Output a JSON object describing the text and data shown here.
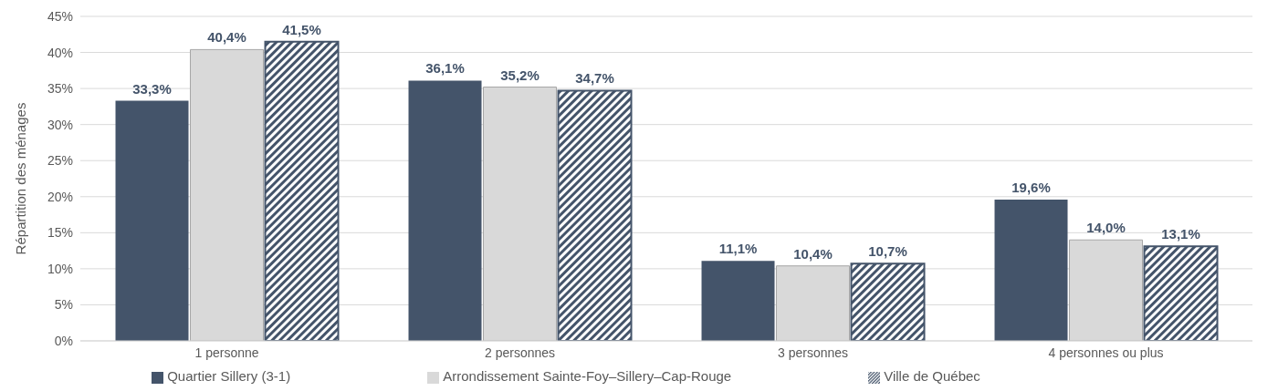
{
  "chart_data": {
    "type": "bar",
    "ylabel": "Répartition des ménages",
    "categories": [
      "1 personne",
      "2 personnes",
      "3 personnes",
      "4 personnes ou plus"
    ],
    "series": [
      {
        "name": "Quartier Sillery (3-1)",
        "color": "#44546a",
        "values": [
          33.3,
          36.1,
          11.1,
          19.6
        ],
        "value_labels": [
          "33,3%",
          "36,1%",
          "11,1%",
          "19,6%"
        ]
      },
      {
        "name": "Arrondissement Sainte-Foy–Sillery–Cap-Rouge",
        "color": "#d9d9d9",
        "values": [
          40.4,
          35.2,
          10.4,
          14.0
        ],
        "value_labels": [
          "40,4%",
          "35,2%",
          "10,4%",
          "14,0%"
        ]
      },
      {
        "name": "Ville de Québec",
        "color": "#44546a",
        "values": [
          41.5,
          34.7,
          10.7,
          13.1
        ],
        "value_labels": [
          "41,5%",
          "34,7%",
          "10,7%",
          "13,1%"
        ]
      }
    ],
    "ylim": [
      0,
      45
    ],
    "yticks": [
      {
        "value": 0,
        "label": "0%"
      },
      {
        "value": 5,
        "label": "5%"
      },
      {
        "value": 10,
        "label": "10%"
      },
      {
        "value": 15,
        "label": "15%"
      },
      {
        "value": 20,
        "label": "20%"
      },
      {
        "value": 25,
        "label": "25%"
      },
      {
        "value": 30,
        "label": "30%"
      },
      {
        "value": 35,
        "label": "35%"
      },
      {
        "value": 40,
        "label": "40%"
      },
      {
        "value": 45,
        "label": "45%"
      }
    ],
    "grid": "y",
    "legend": "bottom"
  }
}
